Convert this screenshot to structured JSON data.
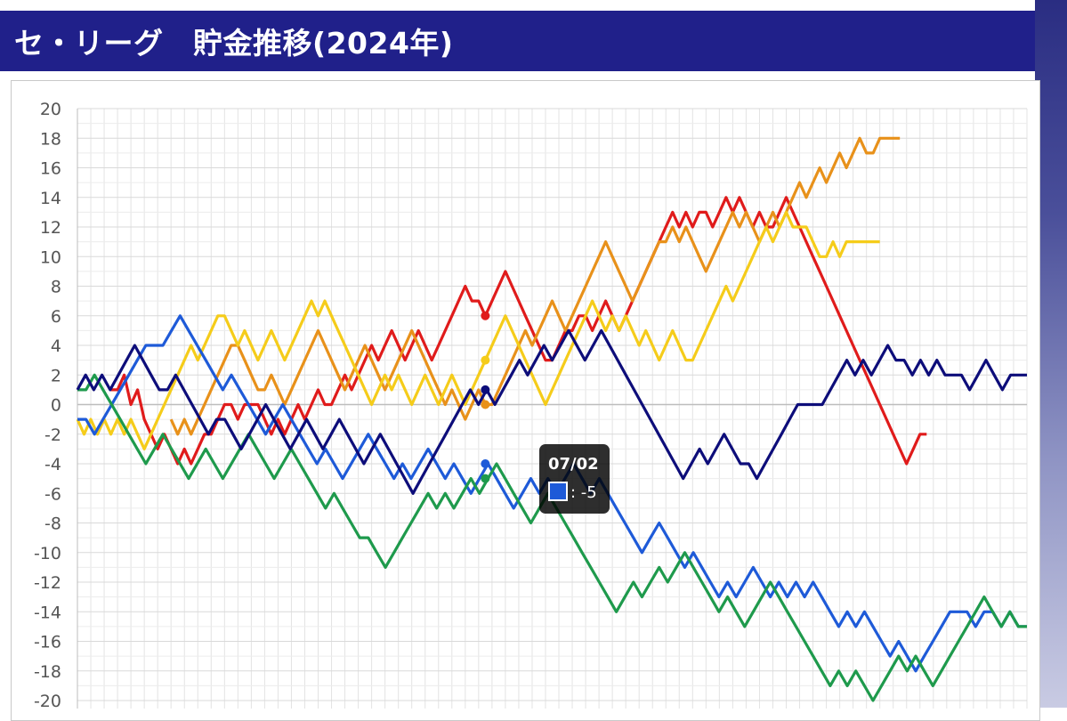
{
  "header": {
    "title": "セ・リーグ　貯金推移(2024年)"
  },
  "tooltip": {
    "date": "07/02",
    "value_text": ": -5",
    "color": "#1e5ad8"
  },
  "chart_data": {
    "type": "line",
    "title": "セ・リーグ　貯金推移(2024年)",
    "xlabel": "",
    "ylabel": "",
    "ylim": [
      -20,
      20
    ],
    "yticks": [
      20,
      18,
      16,
      14,
      12,
      10,
      8,
      6,
      4,
      2,
      0,
      -2,
      -4,
      -6,
      -8,
      -10,
      -12,
      -14,
      -16,
      -18,
      -20
    ],
    "grid": true,
    "legend": "none",
    "x_count": 143,
    "highlight_index": 61,
    "series": [
      {
        "color": "#e01b1b",
        "values": [
          1,
          1,
          2,
          0,
          1,
          -1,
          -2,
          -3,
          -2,
          -3,
          -4,
          -3,
          -4,
          -3,
          -2,
          -2,
          -1,
          0,
          0,
          -1,
          0,
          0,
          0,
          -1,
          -2,
          -1,
          -2,
          -1,
          0,
          -1,
          0,
          1,
          0,
          0,
          1,
          2,
          1,
          2,
          3,
          4,
          3,
          4,
          5,
          4,
          3,
          4,
          5,
          4,
          3,
          4,
          5,
          6,
          7,
          8,
          7,
          7,
          6,
          7,
          8,
          9,
          8,
          7,
          6,
          5,
          4,
          3,
          3,
          4,
          5,
          5,
          6,
          6,
          5,
          6,
          7,
          6,
          5,
          6,
          7,
          8,
          9,
          10,
          11,
          12,
          13,
          12,
          13,
          12,
          13,
          13,
          12,
          13,
          14,
          13,
          14,
          13,
          12,
          13,
          12,
          12,
          13,
          14,
          13,
          12,
          11,
          10,
          9,
          8,
          7,
          6,
          5,
          4,
          3,
          2,
          1,
          0,
          -1,
          -2,
          -3,
          -4,
          -3,
          -2,
          -2
        ],
        "x_offset": 5
      },
      {
        "color": "#e8911a",
        "values": [
          -1,
          -2,
          -1,
          -2,
          -1,
          0,
          1,
          2,
          3,
          4,
          4,
          3,
          2,
          1,
          1,
          2,
          1,
          0,
          1,
          2,
          3,
          4,
          5,
          4,
          3,
          2,
          1,
          2,
          3,
          4,
          3,
          2,
          1,
          2,
          3,
          4,
          5,
          4,
          3,
          2,
          1,
          0,
          1,
          0,
          -1,
          0,
          1,
          0,
          0,
          1,
          2,
          3,
          4,
          5,
          4,
          5,
          6,
          7,
          6,
          5,
          6,
          7,
          8,
          9,
          10,
          11,
          10,
          9,
          8,
          7,
          8,
          9,
          10,
          11,
          11,
          12,
          11,
          12,
          11,
          10,
          9,
          10,
          11,
          12,
          13,
          12,
          13,
          12,
          11,
          12,
          13,
          12,
          13,
          14,
          15,
          14,
          15,
          16,
          15,
          16,
          17,
          16,
          17,
          18,
          17,
          17,
          18,
          18,
          18,
          18
        ],
        "x_offset": 14
      },
      {
        "color": "#f5cc1a",
        "values": [
          -1,
          -2,
          -1,
          -2,
          -1,
          -2,
          -1,
          -2,
          -1,
          -2,
          -3,
          -2,
          -1,
          0,
          1,
          2,
          3,
          4,
          3,
          4,
          5,
          6,
          6,
          5,
          4,
          5,
          4,
          3,
          4,
          5,
          4,
          3,
          4,
          5,
          6,
          7,
          6,
          7,
          6,
          5,
          4,
          3,
          2,
          1,
          0,
          1,
          2,
          1,
          2,
          1,
          0,
          1,
          2,
          1,
          0,
          1,
          2,
          1,
          0,
          1,
          2,
          3,
          4,
          5,
          6,
          5,
          4,
          3,
          2,
          1,
          0,
          1,
          2,
          3,
          4,
          5,
          6,
          7,
          6,
          5,
          6,
          5,
          6,
          5,
          4,
          5,
          4,
          3,
          4,
          5,
          4,
          3,
          3,
          4,
          5,
          6,
          7,
          8,
          7,
          8,
          9,
          10,
          11,
          12,
          11,
          12,
          13,
          12,
          12,
          12,
          11,
          10,
          10,
          11,
          10,
          11,
          11,
          11,
          11,
          11,
          11
        ],
        "x_offset": 0
      },
      {
        "color": "#1e5ad8",
        "values": [
          -1,
          -1,
          -2,
          -1,
          0,
          1,
          2,
          3,
          4,
          4,
          4,
          5,
          6,
          5,
          4,
          3,
          2,
          1,
          2,
          1,
          0,
          -1,
          -2,
          -1,
          0,
          -1,
          -2,
          -3,
          -4,
          -3,
          -4,
          -5,
          -4,
          -3,
          -2,
          -3,
          -4,
          -5,
          -4,
          -5,
          -4,
          -3,
          -4,
          -5,
          -4,
          -5,
          -6,
          -5,
          -4,
          -5,
          -6,
          -7,
          -6,
          -5,
          -6,
          -5,
          -6,
          -5,
          -4,
          -5,
          -6,
          -5,
          -6,
          -7,
          -8,
          -9,
          -10,
          -9,
          -8,
          -9,
          -10,
          -11,
          -10,
          -11,
          -12,
          -13,
          -12,
          -13,
          -12,
          -11,
          -12,
          -13,
          -12,
          -13,
          -12,
          -13,
          -12,
          -13,
          -14,
          -15,
          -14,
          -15,
          -14,
          -15,
          -16,
          -17,
          -16,
          -17,
          -18,
          -17,
          -16,
          -15,
          -14,
          -14,
          -14,
          -15,
          -14,
          -14,
          -15,
          -14,
          -15,
          -15
        ],
        "x_offset": 0,
        "wide_step": true
      },
      {
        "color": "#1e9a4c",
        "values": [
          1,
          1,
          2,
          1,
          0,
          -1,
          -2,
          -3,
          -4,
          -3,
          -2,
          -3,
          -4,
          -5,
          -4,
          -3,
          -4,
          -5,
          -4,
          -3,
          -2,
          -3,
          -4,
          -5,
          -4,
          -3,
          -4,
          -5,
          -6,
          -7,
          -6,
          -7,
          -8,
          -9,
          -9,
          -10,
          -11,
          -10,
          -9,
          -8,
          -7,
          -6,
          -7,
          -6,
          -7,
          -6,
          -5,
          -6,
          -5,
          -4,
          -5,
          -6,
          -7,
          -8,
          -7,
          -6,
          -7,
          -8,
          -9,
          -10,
          -11,
          -12,
          -13,
          -14,
          -13,
          -12,
          -13,
          -12,
          -11,
          -12,
          -11,
          -10,
          -11,
          -12,
          -13,
          -14,
          -13,
          -14,
          -15,
          -14,
          -13,
          -12,
          -13,
          -14,
          -15,
          -16,
          -17,
          -18,
          -19,
          -18,
          -19,
          -18,
          -19,
          -20,
          -19,
          -18,
          -17,
          -18,
          -17,
          -18,
          -19,
          -18,
          -17,
          -16,
          -15,
          -14,
          -13,
          -14,
          -15,
          -14,
          -15,
          -15
        ],
        "x_offset": 0,
        "wide_step": true
      },
      {
        "color": "#0d0d7a",
        "values": [
          1,
          2,
          1,
          2,
          1,
          2,
          3,
          4,
          3,
          2,
          1,
          1,
          2,
          1,
          0,
          -1,
          -2,
          -1,
          -1,
          -2,
          -3,
          -2,
          -1,
          0,
          -1,
          -2,
          -3,
          -2,
          -1,
          -2,
          -3,
          -2,
          -1,
          -2,
          -3,
          -4,
          -3,
          -2,
          -3,
          -4,
          -5,
          -6,
          -5,
          -4,
          -3,
          -2,
          -1,
          0,
          1,
          0,
          1,
          0,
          1,
          2,
          3,
          2,
          3,
          4,
          3,
          4,
          5,
          4,
          3,
          4,
          5,
          4,
          3,
          2,
          1,
          0,
          -1,
          -2,
          -3,
          -4,
          -5,
          -4,
          -3,
          -4,
          -3,
          -2,
          -3,
          -4,
          -4,
          -5,
          -4,
          -3,
          -2,
          -1,
          0,
          0,
          0,
          0,
          1,
          2,
          3,
          2,
          3,
          2,
          3,
          4,
          3,
          3,
          2,
          3,
          2,
          3,
          2,
          2,
          2,
          1,
          2,
          3,
          2,
          1,
          2,
          2,
          2
        ],
        "x_offset": 0,
        "wide_step": true
      }
    ]
  }
}
